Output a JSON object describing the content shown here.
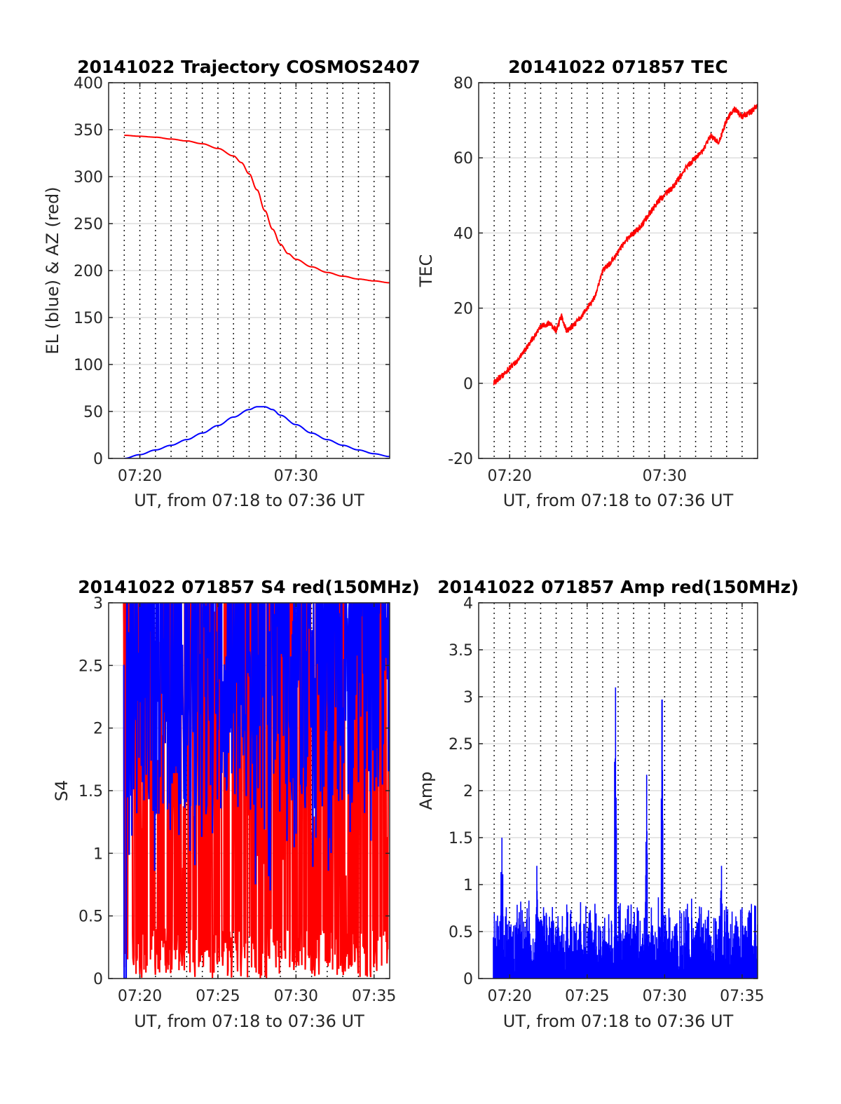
{
  "chart_data": [
    {
      "type": "line",
      "title": "20141022 Trajectory COSMOS2407",
      "xlabel": "UT, from 07:18 to 07:36 UT",
      "ylabel": "EL (blue) & AZ (red)",
      "xlim": [
        "07:18",
        "07:36"
      ],
      "ylim": [
        0,
        400
      ],
      "x_ticks": [
        "07:20",
        "07:30"
      ],
      "y_ticks": [
        "0",
        "50",
        "100",
        "150",
        "200",
        "250",
        "300",
        "350",
        "400"
      ],
      "x_grid_minutes": [
        "07:19",
        "07:20",
        "07:21",
        "07:22",
        "07:23",
        "07:24",
        "07:25",
        "07:26",
        "07:27",
        "07:28",
        "07:29",
        "07:30",
        "07:31",
        "07:32",
        "07:33",
        "07:34",
        "07:35"
      ],
      "grid": true,
      "series": [
        {
          "color": "#ff0000",
          "x": [
            "07:19",
            "07:20",
            "07:21",
            "07:22",
            "07:23",
            "07:24",
            "07:25",
            "07:26",
            "07:26:30",
            "07:27",
            "07:27:30",
            "07:28",
            "07:28:30",
            "07:29",
            "07:29:30",
            "07:30",
            "07:31",
            "07:32",
            "07:33",
            "07:34",
            "07:35",
            "07:36"
          ],
          "values": [
            344,
            343,
            342,
            340,
            338,
            335,
            330,
            322,
            315,
            303,
            286,
            264,
            244,
            228,
            218,
            212,
            204,
            198,
            194,
            191,
            189,
            187
          ]
        },
        {
          "color": "#0000ff",
          "x": [
            "07:19",
            "07:20",
            "07:21",
            "07:22",
            "07:23",
            "07:24",
            "07:25",
            "07:26",
            "07:27",
            "07:27:30",
            "07:28",
            "07:28:30",
            "07:29",
            "07:30",
            "07:31",
            "07:32",
            "07:33",
            "07:34",
            "07:35",
            "07:36"
          ],
          "values": [
            0,
            4,
            9,
            14,
            20,
            27,
            35,
            44,
            52,
            55,
            55,
            52,
            46,
            36,
            27,
            20,
            14,
            9,
            5,
            2
          ]
        }
      ]
    },
    {
      "type": "line",
      "title": "20141022 071857 TEC",
      "xlabel": "UT, from 07:18 to 07:36 UT",
      "ylabel": "TEC",
      "xlim": [
        "07:18",
        "07:36"
      ],
      "ylim": [
        -20,
        80
      ],
      "x_ticks": [
        "07:20",
        "07:30"
      ],
      "y_ticks": [
        "-20",
        "0",
        "20",
        "40",
        "60",
        "80"
      ],
      "x_grid_minutes": [
        "07:19",
        "07:20",
        "07:21",
        "07:22",
        "07:23",
        "07:24",
        "07:25",
        "07:26",
        "07:27",
        "07:28",
        "07:29",
        "07:30",
        "07:31",
        "07:32",
        "07:33",
        "07:34",
        "07:35"
      ],
      "grid": true,
      "series": [
        {
          "color": "#ff0000",
          "x": [
            "07:18:57",
            "07:19:30",
            "07:20",
            "07:20:30",
            "07:21",
            "07:21:30",
            "07:22",
            "07:22:30",
            "07:23",
            "07:23:20",
            "07:23:40",
            "07:24",
            "07:24:30",
            "07:25",
            "07:25:30",
            "07:26",
            "07:26:30",
            "07:27",
            "07:27:30",
            "07:28",
            "07:28:30",
            "07:29",
            "07:29:30",
            "07:30",
            "07:30:30",
            "07:31",
            "07:31:30",
            "07:32",
            "07:32:30",
            "07:33",
            "07:33:30",
            "07:34",
            "07:34:30",
            "07:35",
            "07:35:30",
            "07:36"
          ],
          "values": [
            0,
            2,
            4,
            6,
            9,
            12,
            15,
            16,
            14,
            18,
            14,
            15,
            17,
            20,
            23,
            30,
            32,
            35,
            38,
            40,
            42,
            45,
            48,
            50,
            52,
            55,
            58,
            60,
            62,
            66,
            64,
            70,
            73,
            71,
            72,
            74
          ]
        }
      ]
    },
    {
      "type": "line",
      "title": "20141022 071857 S4 red(150MHz)",
      "xlabel": "UT, from 07:18 to 07:36 UT",
      "ylabel": "S4",
      "xlim": [
        "07:18",
        "07:36"
      ],
      "ylim": [
        0,
        3
      ],
      "x_ticks": [
        "07:20",
        "07:25",
        "07:30",
        "07:35"
      ],
      "y_ticks": [
        "0",
        "0.5",
        "1",
        "1.5",
        "2",
        "2.5",
        "3"
      ],
      "x_grid_minutes": [
        "07:19",
        "07:20",
        "07:21",
        "07:22",
        "07:23",
        "07:24",
        "07:25",
        "07:26",
        "07:27",
        "07:28",
        "07:29",
        "07:30",
        "07:31",
        "07:32",
        "07:33",
        "07:34",
        "07:35"
      ],
      "grid": true,
      "series": [
        {
          "color": "#ff0000",
          "x_range": [
            "07:18:57",
            "07:36"
          ],
          "typical_range": [
            0,
            3
          ],
          "clip_max": 3
        },
        {
          "color": "#0000ff",
          "x_range": [
            "07:18:57",
            "07:36"
          ],
          "typical_range": [
            1.2,
            3
          ],
          "clip_max": 3
        }
      ]
    },
    {
      "type": "line",
      "title": "20141022 071857 Amp red(150MHz)",
      "xlabel": "UT, from 07:18 to 07:36 UT",
      "ylabel": "Amp",
      "xlim": [
        "07:18",
        "07:36"
      ],
      "ylim": [
        0,
        4
      ],
      "x_ticks": [
        "07:20",
        "07:25",
        "07:30",
        "07:35"
      ],
      "y_ticks": [
        "0",
        "0.5",
        "1",
        "1.5",
        "2",
        "2.5",
        "3",
        "3.5",
        "4"
      ],
      "x_grid_minutes": [
        "07:19",
        "07:20",
        "07:21",
        "07:22",
        "07:23",
        "07:24",
        "07:25",
        "07:26",
        "07:27",
        "07:28",
        "07:29",
        "07:30",
        "07:31",
        "07:32",
        "07:33",
        "07:34",
        "07:35"
      ],
      "grid": true,
      "series": [
        {
          "color": "#0000ff",
          "x_range": [
            "07:18:57",
            "07:36"
          ],
          "typical_peak": 0.8,
          "spikes": [
            {
              "x": "07:19:30",
              "value": 1.5
            },
            {
              "x": "07:21:45",
              "value": 1.2
            },
            {
              "x": "07:26:50",
              "value": 3.1
            },
            {
              "x": "07:28:50",
              "value": 2.17
            },
            {
              "x": "07:29:50",
              "value": 2.97
            },
            {
              "x": "07:33:40",
              "value": 1.2
            }
          ]
        }
      ]
    }
  ]
}
